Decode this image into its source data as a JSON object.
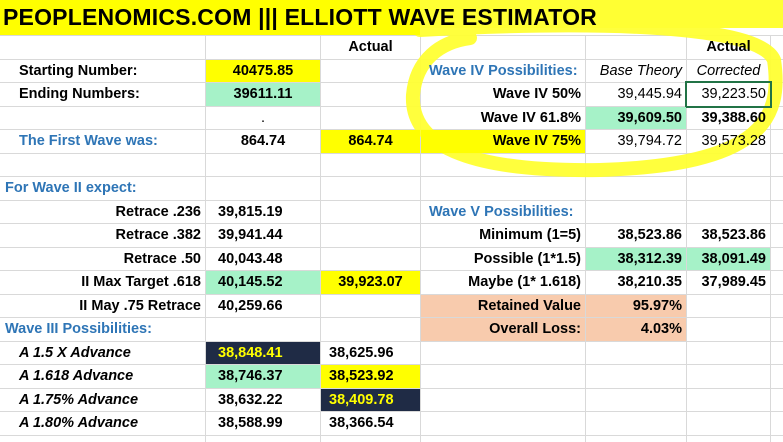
{
  "title": "PEOPLENOMICS.COM ||| ELLIOTT WAVE  ESTIMATOR",
  "left": {
    "header": "Actual",
    "inputs": [
      {
        "label": "Starting Number:",
        "value": "40475.85"
      },
      {
        "label": "Ending Numbers:",
        "value": "39611.11"
      }
    ],
    "dot": ".",
    "first_wave": {
      "label": "The First Wave was:",
      "value": "864.74",
      "actual": "864.74"
    },
    "wave2": {
      "heading": "For Wave II expect:",
      "rows": [
        {
          "label": "Retrace .236",
          "value": "39,815.19"
        },
        {
          "label": "Retrace .382",
          "value": "39,941.44"
        },
        {
          "label": "Retrace .50",
          "value": "40,043.48"
        },
        {
          "label": "II Max Target .618",
          "value": "40,145.52",
          "actual": "39,923.07"
        },
        {
          "label": "II May .75 Retrace",
          "value": "40,259.66"
        }
      ]
    },
    "wave3": {
      "heading": "Wave III Possibilities:",
      "rows": [
        {
          "label": "A 1.5 X Advance",
          "value": "38,848.41",
          "actual": "38,625.96"
        },
        {
          "label": "A 1.618 Advance",
          "value": "38,746.37",
          "actual": "38,523.92"
        },
        {
          "label": "A 1.75% Advance",
          "value": "38,632.22",
          "actual": "38,409.78"
        },
        {
          "label": "A 1.80% Advance",
          "value": "38,588.99",
          "actual": "38,366.54"
        }
      ]
    }
  },
  "right": {
    "header": "Actual",
    "wave4": {
      "heading": "Wave IV Possibilities:",
      "base": "Base Theory",
      "corrected": "Corrected",
      "rows": [
        {
          "label": "Wave IV 50%",
          "value": "39,445.94",
          "actual": "39,223.50"
        },
        {
          "label": "Wave IV 61.8%",
          "value": "39,609.50",
          "actual": "39,388.60"
        },
        {
          "label": "Wave IV 75%",
          "value": "39,794.72",
          "actual": "39,573.28"
        }
      ]
    },
    "wave5": {
      "heading": "Wave V Possibilities:",
      "rows": [
        {
          "label": "Minimum (1=5)",
          "value": "38,523.86",
          "actual": "38,523.86"
        },
        {
          "label": "Possible (1*1.5)",
          "value": "38,312.39",
          "actual": "38,091.49"
        },
        {
          "label": "Maybe (1* 1.618)",
          "value": "38,210.35",
          "actual": "37,989.45"
        }
      ]
    },
    "retained": {
      "label": "Retained Value",
      "value": "95.97%"
    },
    "loss": {
      "label": "Overall Loss:",
      "value": "4.03%"
    }
  }
}
